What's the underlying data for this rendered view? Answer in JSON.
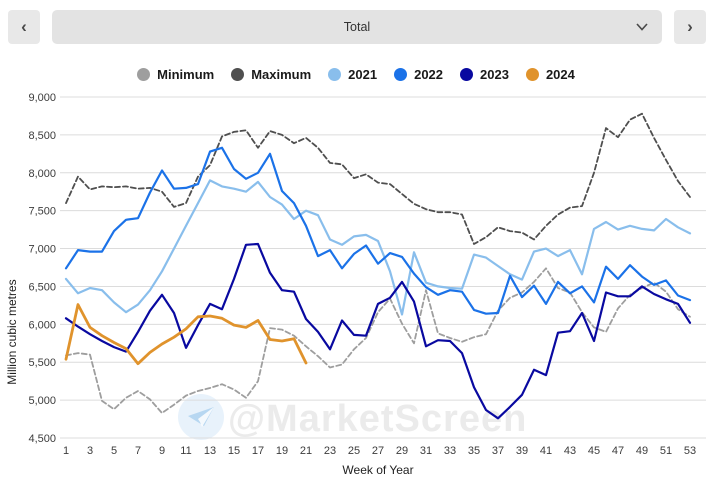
{
  "header": {
    "prev_label": "‹",
    "next_label": "›",
    "dropdown_value": "Total"
  },
  "watermark": {
    "text": "@MarketScreen"
  },
  "colors": {
    "minimum": "#9e9e9e",
    "maximum": "#4f4f4f",
    "y2021": "#89beec",
    "y2022": "#1b72e8",
    "y2023": "#0909a0",
    "y2024": "#e0932c",
    "grid": "#dcdcdc"
  },
  "legend": [
    {
      "label": "Minimum",
      "color": "#9e9e9e"
    },
    {
      "label": "Maximum",
      "color": "#4f4f4f"
    },
    {
      "label": "2021",
      "color": "#89beec"
    },
    {
      "label": "2022",
      "color": "#1b72e8"
    },
    {
      "label": "2023",
      "color": "#0909a0"
    },
    {
      "label": "2024",
      "color": "#e0932c"
    }
  ],
  "chart_data": {
    "type": "line",
    "title": "",
    "xlabel": "Week of Year",
    "ylabel": "Million cubic metres",
    "xlim": [
      1,
      53
    ],
    "ylim": [
      4500,
      9000
    ],
    "ytick_step": 500,
    "x_tick_labels": [
      1,
      3,
      5,
      7,
      9,
      11,
      13,
      15,
      17,
      19,
      21,
      23,
      25,
      27,
      29,
      31,
      33,
      35,
      37,
      39,
      41,
      43,
      45,
      47,
      49,
      51,
      53
    ],
    "grid": "horizontal",
    "legend_position": "top",
    "series": [
      {
        "name": "Minimum",
        "color": "#9e9e9e",
        "dashed": true,
        "width": 1.8,
        "values": [
          5590,
          5620,
          5600,
          4990,
          4880,
          5030,
          5120,
          5010,
          4830,
          4940,
          5060,
          5120,
          5160,
          5210,
          5140,
          5030,
          5250,
          5950,
          5930,
          5850,
          5710,
          5580,
          5430,
          5470,
          5670,
          5820,
          6160,
          6340,
          6010,
          5750,
          6450,
          5880,
          5820,
          5770,
          5830,
          5870,
          6180,
          6350,
          6420,
          6560,
          6740,
          6480,
          6420,
          6160,
          5960,
          5900,
          6210,
          6390,
          6480,
          6550,
          6430,
          6200,
          6100
        ]
      },
      {
        "name": "Maximum",
        "color": "#4f4f4f",
        "dashed": true,
        "width": 1.8,
        "values": [
          7600,
          7950,
          7780,
          7820,
          7810,
          7820,
          7790,
          7800,
          7750,
          7550,
          7600,
          7950,
          8100,
          8480,
          8540,
          8560,
          8330,
          8550,
          8500,
          8390,
          8460,
          8330,
          8130,
          8110,
          7930,
          7980,
          7870,
          7850,
          7720,
          7590,
          7520,
          7480,
          7480,
          7450,
          7060,
          7150,
          7280,
          7230,
          7210,
          7120,
          7300,
          7450,
          7540,
          7560,
          8000,
          8590,
          8470,
          8700,
          8780,
          8460,
          8170,
          7890,
          7680
        ]
      },
      {
        "name": "2021",
        "color": "#89beec",
        "dashed": false,
        "width": 2.2,
        "values": [
          6600,
          6410,
          6480,
          6450,
          6290,
          6160,
          6260,
          6450,
          6700,
          7000,
          7300,
          7600,
          7900,
          7820,
          7790,
          7750,
          7880,
          7680,
          7580,
          7390,
          7500,
          7440,
          7120,
          7050,
          7160,
          7180,
          7100,
          6700,
          6130,
          6950,
          6550,
          6500,
          6480,
          6470,
          6920,
          6880,
          6770,
          6660,
          6590,
          6960,
          7000,
          6900,
          6980,
          6660,
          7260,
          7350,
          7250,
          7300,
          7260,
          7240,
          7390,
          7280,
          7200
        ]
      },
      {
        "name": "2022",
        "color": "#1b72e8",
        "dashed": false,
        "width": 2.2,
        "values": [
          6740,
          6980,
          6960,
          6960,
          7230,
          7380,
          7400,
          7740,
          8030,
          7790,
          7800,
          7850,
          8280,
          8330,
          8050,
          7920,
          8000,
          8250,
          7760,
          7600,
          7300,
          6900,
          6980,
          6740,
          6930,
          7040,
          6800,
          6940,
          6890,
          6670,
          6490,
          6390,
          6450,
          6430,
          6190,
          6140,
          6150,
          6640,
          6360,
          6510,
          6270,
          6560,
          6410,
          6500,
          6290,
          6760,
          6600,
          6780,
          6630,
          6520,
          6580,
          6380,
          6320
        ]
      },
      {
        "name": "2023",
        "color": "#0909a0",
        "dashed": false,
        "width": 2.2,
        "values": [
          6080,
          5970,
          5870,
          5780,
          5700,
          5640,
          5900,
          6180,
          6390,
          6150,
          5690,
          5990,
          6270,
          6200,
          6600,
          7050,
          7060,
          6680,
          6450,
          6430,
          6070,
          5900,
          5670,
          6050,
          5860,
          5850,
          6270,
          6350,
          6560,
          6300,
          5710,
          5790,
          5780,
          5620,
          5170,
          4870,
          4760,
          4910,
          5070,
          5400,
          5330,
          5890,
          5910,
          6150,
          5780,
          6420,
          6370,
          6370,
          6500,
          6400,
          6330,
          6270,
          6020
        ]
      },
      {
        "name": "2024",
        "color": "#e0932c",
        "dashed": false,
        "width": 2.8,
        "values": [
          5540,
          6260,
          5960,
          5850,
          5760,
          5680,
          5480,
          5630,
          5740,
          5830,
          5940,
          6100,
          6110,
          6080,
          5990,
          5960,
          6050,
          5800,
          5780,
          5810,
          5490
        ]
      }
    ]
  }
}
